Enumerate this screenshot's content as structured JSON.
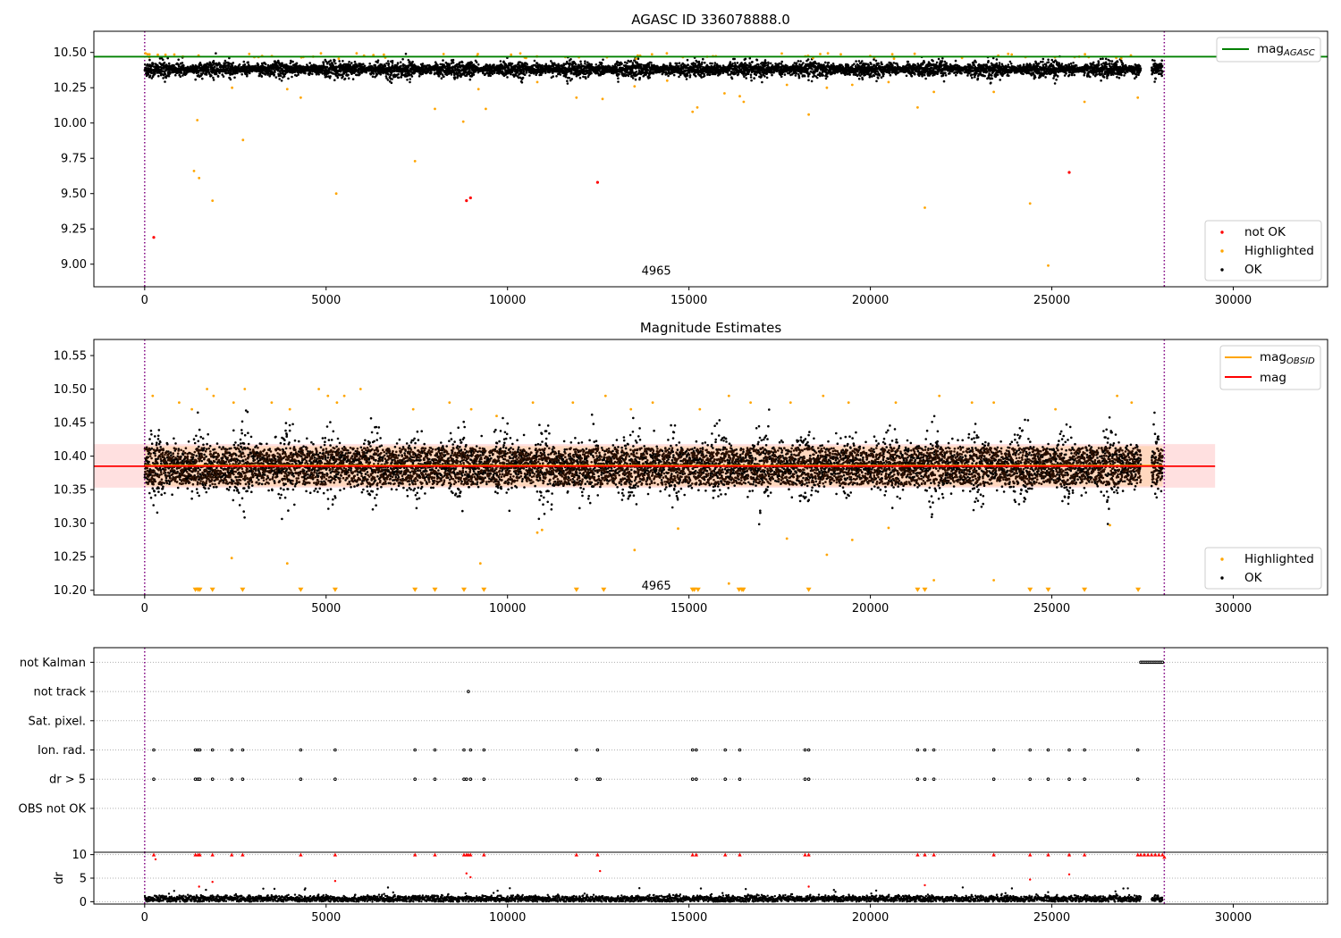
{
  "chart_data": [
    {
      "type": "scatter",
      "title": "AGASC ID 336078888.0",
      "xlim": [
        -1400,
        32600
      ],
      "ylim": [
        8.84,
        10.65
      ],
      "xticks": [
        0,
        5000,
        10000,
        15000,
        20000,
        25000,
        30000
      ],
      "yticks": [
        9.0,
        9.25,
        9.5,
        9.75,
        10.0,
        10.25,
        10.5
      ],
      "ytick_labels": [
        "9.00",
        "9.25",
        "9.50",
        "9.75",
        "10.00",
        "10.25",
        "10.50"
      ],
      "vlines": [
        0,
        28100
      ],
      "annotation": {
        "text": "4965",
        "x": 14100,
        "y": 8.9
      },
      "lines": [
        {
          "name": "mag_AGASC",
          "label": "mag",
          "label_sub": "AGASC",
          "y": 10.47,
          "x_range": [
            -1400,
            32600
          ],
          "color": "#008000"
        }
      ],
      "series": [
        {
          "name": "not OK",
          "color": "#ff0000",
          "points": [
            [
              250,
              9.19
            ],
            [
              8870,
              9.45
            ],
            [
              8980,
              9.47
            ],
            [
              12480,
              9.58
            ],
            [
              25480,
              9.65
            ]
          ]
        },
        {
          "name": "Highlighted",
          "color": "#ffa500",
          "points": [
            [
              1360,
              9.66
            ],
            [
              1450,
              10.02
            ],
            [
              1500,
              9.61
            ],
            [
              1870,
              9.45
            ],
            [
              2410,
              10.25
            ],
            [
              2710,
              9.88
            ],
            [
              3930,
              10.24
            ],
            [
              4300,
              10.18
            ],
            [
              5280,
              9.5
            ],
            [
              7450,
              9.73
            ],
            [
              8000,
              10.1
            ],
            [
              8780,
              10.01
            ],
            [
              9200,
              10.24
            ],
            [
              9400,
              10.1
            ],
            [
              10820,
              10.29
            ],
            [
              11900,
              10.18
            ],
            [
              12620,
              10.17
            ],
            [
              13500,
              10.26
            ],
            [
              14400,
              10.3
            ],
            [
              15100,
              10.08
            ],
            [
              15230,
              10.11
            ],
            [
              15980,
              10.21
            ],
            [
              16400,
              10.19
            ],
            [
              16510,
              10.15
            ],
            [
              17700,
              10.27
            ],
            [
              18300,
              10.06
            ],
            [
              18800,
              10.25
            ],
            [
              19500,
              10.27
            ],
            [
              20500,
              10.29
            ],
            [
              21300,
              10.11
            ],
            [
              21500,
              9.4
            ],
            [
              21750,
              10.22
            ],
            [
              23400,
              10.22
            ],
            [
              24400,
              9.43
            ],
            [
              24900,
              8.99
            ],
            [
              25900,
              10.15
            ],
            [
              27370,
              10.18
            ]
          ]
        },
        {
          "name": "OK",
          "color": "#000000",
          "band": {
            "x_range": [
              0,
              27450
            ],
            "extra_range": [
              27750,
              28050
            ],
            "y_center": 10.38,
            "y_spread": 0.05
          }
        }
      ],
      "legend": {
        "location": "lower-right",
        "entries": [
          "not OK",
          "Highlighted",
          "OK"
        ]
      },
      "legend2": {
        "location": "upper-right",
        "entries": [
          "mag_AGASC"
        ]
      }
    },
    {
      "type": "scatter",
      "title": "Magnitude Estimates",
      "xlim": [
        -1400,
        32600
      ],
      "ylim": [
        10.193,
        10.574
      ],
      "xticks": [
        0,
        5000,
        10000,
        15000,
        20000,
        25000,
        30000
      ],
      "yticks": [
        10.2,
        10.25,
        10.3,
        10.35,
        10.4,
        10.45,
        10.5,
        10.55
      ],
      "ytick_labels": [
        "10.20",
        "10.25",
        "10.30",
        "10.35",
        "10.40",
        "10.45",
        "10.50",
        "10.55"
      ],
      "vlines": [
        0,
        28100
      ],
      "annotation": {
        "text": "4965",
        "x": 14100,
        "y": 10.205
      },
      "bands": [
        {
          "name": "mag_OBSID",
          "y_range": [
            10.355,
            10.415
          ],
          "x_range": [
            0,
            28050
          ],
          "color": "#ffa500"
        },
        {
          "name": "mag",
          "y_range": [
            10.353,
            10.418
          ],
          "x_range": [
            -1400,
            29500
          ],
          "color": "#ff0000"
        }
      ],
      "lines": [
        {
          "name": "mag_OBSID",
          "label": "mag",
          "label_sub": "OBSID",
          "y": 10.386,
          "x_range": [
            0,
            28050
          ],
          "color": "#ffa500"
        },
        {
          "name": "mag",
          "label": "mag",
          "y": 10.385,
          "x_range": [
            -1400,
            29500
          ],
          "color": "#ff0000"
        }
      ],
      "series": [
        {
          "name": "Highlighted",
          "color": "#ffa500",
          "points": [
            [
              220,
              10.49
            ],
            [
              950,
              10.48
            ],
            [
              1300,
              10.47
            ],
            [
              1720,
              10.5
            ],
            [
              1900,
              10.49
            ],
            [
              2450,
              10.48
            ],
            [
              2760,
              10.5
            ],
            [
              3500,
              10.48
            ],
            [
              4000,
              10.47
            ],
            [
              4800,
              10.5
            ],
            [
              5050,
              10.49
            ],
            [
              5300,
              10.48
            ],
            [
              5500,
              10.49
            ],
            [
              5950,
              10.5
            ],
            [
              7400,
              10.47
            ],
            [
              8400,
              10.48
            ],
            [
              9000,
              10.47
            ],
            [
              9700,
              10.46
            ],
            [
              10700,
              10.48
            ],
            [
              11800,
              10.48
            ],
            [
              12700,
              10.49
            ],
            [
              13400,
              10.47
            ],
            [
              14000,
              10.48
            ],
            [
              15300,
              10.47
            ],
            [
              16100,
              10.49
            ],
            [
              16700,
              10.48
            ],
            [
              17800,
              10.48
            ],
            [
              18700,
              10.49
            ],
            [
              19400,
              10.48
            ],
            [
              20700,
              10.48
            ],
            [
              21900,
              10.49
            ],
            [
              22800,
              10.48
            ],
            [
              23400,
              10.48
            ],
            [
              25100,
              10.47
            ],
            [
              26800,
              10.49
            ],
            [
              27200,
              10.48
            ],
            [
              2400,
              10.248
            ],
            [
              3930,
              10.24
            ],
            [
              9250,
              10.24
            ],
            [
              10820,
              10.286
            ],
            [
              10950,
              10.29
            ],
            [
              13500,
              10.26
            ],
            [
              14700,
              10.292
            ],
            [
              16100,
              10.21
            ],
            [
              17700,
              10.277
            ],
            [
              18800,
              10.253
            ],
            [
              19500,
              10.275
            ],
            [
              20500,
              10.293
            ],
            [
              21750,
              10.215
            ],
            [
              23400,
              10.215
            ],
            [
              26600,
              10.297
            ]
          ]
        },
        {
          "name": "Highlighted",
          "color": "#ffa500",
          "marker": "down-triangle",
          "y": 10.2,
          "x": [
            1400,
            1470,
            1520,
            1870,
            2700,
            4300,
            5250,
            7450,
            8000,
            8800,
            9350,
            11900,
            12650,
            15100,
            15150,
            15250,
            16380,
            16460,
            16500,
            18300,
            21300,
            21500,
            24400,
            24900,
            25900,
            27380
          ]
        },
        {
          "name": "OK",
          "color": "#000000",
          "band": {
            "x_range": [
              0,
              27450
            ],
            "extra_range": [
              27750,
              28050
            ],
            "y_center": 10.385,
            "y_spread": 0.045
          }
        }
      ],
      "legend": {
        "location": "lower-right",
        "entries": [
          "Highlighted",
          "OK"
        ]
      },
      "legend2": {
        "location": "upper-right",
        "entries": [
          "mag_OBSID",
          "mag"
        ]
      }
    },
    {
      "type": "scatter",
      "title": "",
      "xlim": [
        -1400,
        32600
      ],
      "ylim": [
        -0.5,
        6.5
      ],
      "vlines": [
        0,
        28100
      ],
      "category_labels": [
        "not Kalman",
        "not track",
        "Sat. pixel.",
        "Ion. rad.",
        "dr > 5",
        "OBS not OK"
      ],
      "category_y": [
        6,
        5,
        4,
        3,
        2,
        1
      ],
      "flags": [
        {
          "label": "not Kalman",
          "x": [
            27450,
            27500,
            27550,
            27600,
            27650,
            27700,
            27750,
            27800,
            27850,
            27900,
            27950,
            28000,
            28050
          ]
        },
        {
          "label": "not track",
          "x": [
            8920
          ]
        },
        {
          "label": "Sat. pixel.",
          "x": []
        },
        {
          "label": "Ion. rad.",
          "x": [
            250,
            1400,
            1470,
            1520,
            1870,
            2400,
            2700,
            4300,
            5250,
            7450,
            8000,
            8800,
            8980,
            9350,
            11900,
            12480,
            15100,
            15200,
            16000,
            16400,
            18200,
            18300,
            21300,
            21500,
            21750,
            23400,
            24400,
            24900,
            25480,
            25900,
            27370
          ]
        },
        {
          "label": "dr > 5",
          "x": [
            250,
            1400,
            1470,
            1520,
            1870,
            2400,
            2700,
            4300,
            5250,
            7450,
            8000,
            8800,
            8870,
            8980,
            9350,
            11900,
            12480,
            12550,
            15100,
            15200,
            16000,
            16400,
            18200,
            18300,
            21300,
            21500,
            21750,
            23400,
            24400,
            24900,
            25480,
            25900,
            27370
          ]
        },
        {
          "label": "OBS not OK",
          "x": []
        }
      ]
    },
    {
      "type": "scatter",
      "ylabel": "dr",
      "xlim": [
        -1400,
        32600
      ],
      "ylim": [
        -0.5,
        10.5
      ],
      "xticks": [
        0,
        5000,
        10000,
        15000,
        20000,
        25000,
        30000
      ],
      "yticks": [
        0,
        5,
        10
      ],
      "vlines": [
        0,
        28100
      ],
      "series": [
        {
          "name": "dr > 5",
          "color": "#ff0000",
          "points": [
            [
              250,
              10
            ],
            [
              300,
              9
            ],
            [
              1400,
              10
            ],
            [
              1470,
              10
            ],
            [
              1520,
              10
            ],
            [
              1870,
              10
            ],
            [
              2400,
              10
            ],
            [
              2700,
              10
            ],
            [
              4300,
              10
            ],
            [
              5250,
              10
            ],
            [
              7450,
              10
            ],
            [
              8000,
              10
            ],
            [
              8800,
              10
            ],
            [
              8870,
              10
            ],
            [
              8920,
              10
            ],
            [
              8980,
              10
            ],
            [
              9350,
              10
            ],
            [
              11900,
              10
            ],
            [
              12480,
              10
            ],
            [
              15100,
              10
            ],
            [
              15200,
              10
            ],
            [
              16000,
              10
            ],
            [
              16400,
              10
            ],
            [
              18200,
              10
            ],
            [
              18300,
              10
            ],
            [
              21300,
              10
            ],
            [
              21500,
              10
            ],
            [
              21750,
              10
            ],
            [
              23400,
              10
            ],
            [
              24400,
              10
            ],
            [
              24900,
              10
            ],
            [
              25480,
              10
            ],
            [
              25900,
              10
            ],
            [
              27370,
              10
            ],
            [
              27450,
              10
            ],
            [
              27550,
              10
            ],
            [
              27650,
              10
            ],
            [
              27750,
              10
            ],
            [
              27850,
              10
            ],
            [
              27950,
              10
            ],
            [
              28050,
              10
            ],
            [
              28100,
              9.5
            ],
            [
              1500,
              3.2
            ],
            [
              1870,
              4.2
            ],
            [
              5250,
              4.4
            ],
            [
              8870,
              6
            ],
            [
              8980,
              5.2
            ],
            [
              12550,
              6.5
            ],
            [
              18300,
              3.2
            ],
            [
              21500,
              3.5
            ],
            [
              24400,
              4.7
            ],
            [
              25480,
              5.8
            ]
          ]
        },
        {
          "name": "dr",
          "color": "#000000",
          "band": {
            "x_range": [
              0,
              27450
            ],
            "extra_range": [
              27750,
              28050
            ],
            "y_center": 0.6,
            "y_spread": 0.5
          }
        }
      ]
    }
  ]
}
